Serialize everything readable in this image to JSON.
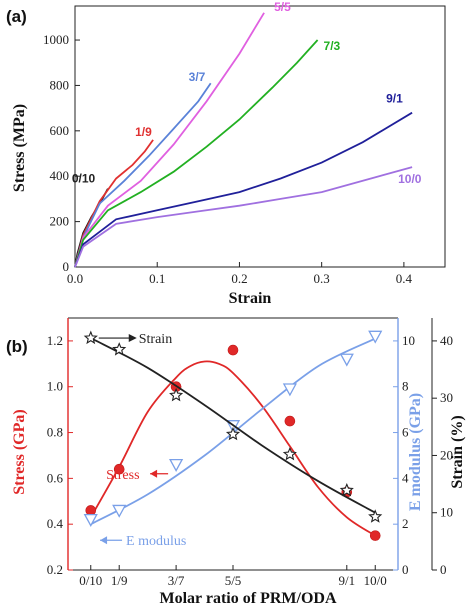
{
  "chart_data": [
    {
      "panel_label": "(a)",
      "type": "line",
      "xlabel": "Strain",
      "ylabel": "Stress (MPa)",
      "xlim": [
        0,
        0.45
      ],
      "ylim": [
        0,
        1150
      ],
      "xticks": [
        "0.0",
        "0.1",
        "0.2",
        "0.3",
        "0.4"
      ],
      "yticks": [
        "0",
        "200",
        "400",
        "600",
        "800",
        "1000"
      ],
      "grid": false,
      "series": [
        {
          "name": "0/10",
          "color": "#222222",
          "x": [
            0,
            0.003,
            0.01,
            0.02,
            0.03,
            0.04
          ],
          "y": [
            0,
            60,
            150,
            220,
            280,
            345
          ]
        },
        {
          "name": "1/9",
          "color": "#e03030",
          "x": [
            0,
            0.01,
            0.03,
            0.05,
            0.07,
            0.085,
            0.095
          ],
          "y": [
            0,
            140,
            290,
            390,
            450,
            510,
            560
          ]
        },
        {
          "name": "3/7",
          "color": "#5a82d8",
          "x": [
            0,
            0.01,
            0.03,
            0.06,
            0.09,
            0.12,
            0.15,
            0.165
          ],
          "y": [
            0,
            130,
            280,
            380,
            490,
            610,
            730,
            810
          ]
        },
        {
          "name": "5/5",
          "color": "#e060e0",
          "x": [
            0,
            0.01,
            0.04,
            0.08,
            0.12,
            0.16,
            0.2,
            0.23
          ],
          "y": [
            0,
            130,
            270,
            380,
            540,
            730,
            940,
            1120
          ]
        },
        {
          "name": "7/3",
          "color": "#22b022",
          "x": [
            0,
            0.01,
            0.04,
            0.08,
            0.12,
            0.16,
            0.2,
            0.24,
            0.27,
            0.295
          ],
          "y": [
            0,
            120,
            250,
            330,
            420,
            530,
            650,
            790,
            900,
            1000
          ]
        },
        {
          "name": "9/1",
          "color": "#20209a",
          "x": [
            0,
            0.01,
            0.05,
            0.1,
            0.15,
            0.2,
            0.25,
            0.3,
            0.35,
            0.41
          ],
          "y": [
            0,
            100,
            210,
            250,
            290,
            330,
            390,
            460,
            550,
            680
          ]
        },
        {
          "name": "10/0",
          "color": "#a070e0",
          "x": [
            0,
            0.01,
            0.05,
            0.1,
            0.15,
            0.2,
            0.25,
            0.3,
            0.35,
            0.41
          ],
          "y": [
            0,
            90,
            190,
            220,
            245,
            270,
            300,
            330,
            380,
            440
          ]
        }
      ]
    },
    {
      "panel_label": "(b)",
      "type": "scatter",
      "xlabel": "Molar ratio of PRM/ODA",
      "categories": [
        "0/10",
        "1/9",
        "3/7",
        "5/5",
        "9/1",
        "10/0"
      ],
      "x_positions": [
        0,
        1,
        3,
        5,
        9,
        10
      ],
      "left_ylabel": "Stress (GPa)",
      "left_ylim": [
        0.2,
        1.3
      ],
      "left_yticks": [
        "0.2",
        "0.4",
        "0.6",
        "0.8",
        "1.0",
        "1.2"
      ],
      "right_ylabel_1": "E modulus (GPa)",
      "right_ylim_1": [
        0,
        11
      ],
      "right_yticks_1": [
        "0",
        "2",
        "4",
        "6",
        "8",
        "10"
      ],
      "right_ylabel_2": "Strain (%)",
      "right_ylim_2": [
        0,
        44
      ],
      "right_yticks_2": [
        "0",
        "10",
        "20",
        "30",
        "40"
      ],
      "series": [
        {
          "name": "Stress",
          "color": "#e02828",
          "marker": "circle",
          "axis": "left",
          "x": [
            0,
            1,
            3,
            5,
            7,
            9,
            10
          ],
          "y": [
            0.46,
            0.64,
            1.0,
            1.16,
            0.85,
            0.54,
            0.35
          ],
          "fit_x": [
            0,
            1,
            2,
            3,
            3.5,
            4,
            4.5,
            5,
            6,
            7,
            8,
            9,
            10
          ],
          "fit_y": [
            0.43,
            0.65,
            0.89,
            1.04,
            1.09,
            1.11,
            1.1,
            1.06,
            0.92,
            0.74,
            0.56,
            0.43,
            0.35
          ]
        },
        {
          "name": "E modulus",
          "color": "#7aa0e8",
          "marker": "triangle-down",
          "axis": "right1",
          "x": [
            0,
            1,
            3,
            5,
            7,
            9,
            10
          ],
          "y": [
            2.2,
            2.6,
            4.6,
            6.3,
            7.9,
            9.2,
            10.2
          ],
          "fit_x": [
            0,
            2,
            4,
            6,
            8,
            10
          ],
          "fit_y": [
            2.0,
            3.3,
            5.0,
            7.0,
            8.9,
            10.1
          ]
        },
        {
          "name": "Strain",
          "color": "#222222",
          "marker": "star",
          "axis": "right2",
          "x": [
            0,
            1,
            3,
            5,
            7,
            9,
            10
          ],
          "y": [
            40.5,
            38.5,
            30.5,
            23.7,
            20.2,
            13.9,
            9.3
          ],
          "fit_x": [
            0,
            2,
            4,
            6,
            8,
            10
          ],
          "fit_y": [
            40.5,
            35.3,
            28.8,
            21.8,
            15.5,
            10.0
          ]
        }
      ]
    }
  ]
}
